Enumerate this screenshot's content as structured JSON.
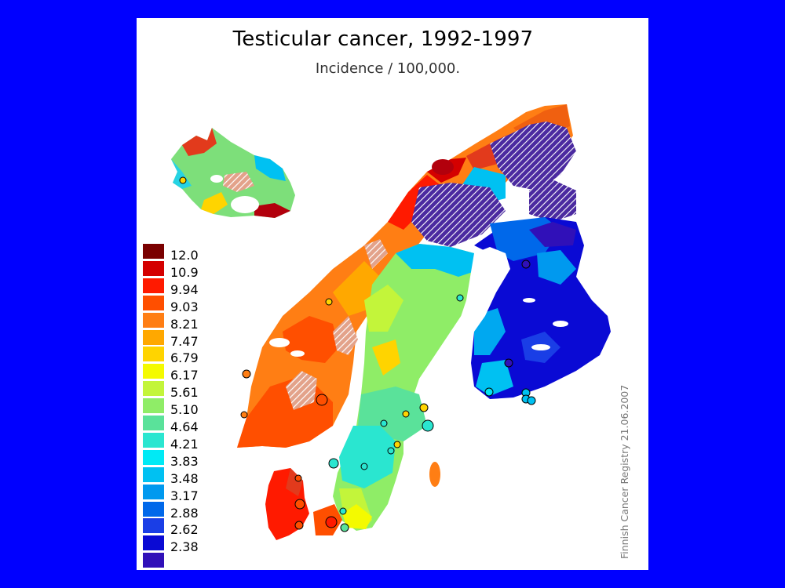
{
  "title": "Testicular cancer, 1992-1997",
  "subtitle": "Incidence / 100,000.",
  "credit": "Finnish Cancer Registry 21.06.2007",
  "colors": {
    "background": "#0000ff",
    "panel": "#ffffff",
    "no_data_hatch": "#4b2aa0"
  },
  "legend": [
    {
      "label": "12.0",
      "color": "#7a0000"
    },
    {
      "label": "10.9",
      "color": "#d40000"
    },
    {
      "label": "9.94",
      "color": "#ff1a00"
    },
    {
      "label": "9.03",
      "color": "#ff4f00"
    },
    {
      "label": "8.21",
      "color": "#ff7e14"
    },
    {
      "label": "7.47",
      "color": "#ffa800"
    },
    {
      "label": "6.79",
      "color": "#ffd400"
    },
    {
      "label": "6.17",
      "color": "#f4fa00"
    },
    {
      "label": "5.61",
      "color": "#c3f53a"
    },
    {
      "label": "5.10",
      "color": "#8fed67"
    },
    {
      "label": "4.64",
      "color": "#5ae29a"
    },
    {
      "label": "4.21",
      "color": "#2ae6d0"
    },
    {
      "label": "3.83",
      "color": "#00eaf5"
    },
    {
      "label": "3.48",
      "color": "#00c1f2"
    },
    {
      "label": "3.17",
      "color": "#0099ef"
    },
    {
      "label": "2.88",
      "color": "#0068ea"
    },
    {
      "label": "2.62",
      "color": "#1a3ee6"
    },
    {
      "label": "2.38",
      "color": "#0a0ad4"
    },
    {
      "label": "",
      "color": "#3010b8"
    }
  ]
}
